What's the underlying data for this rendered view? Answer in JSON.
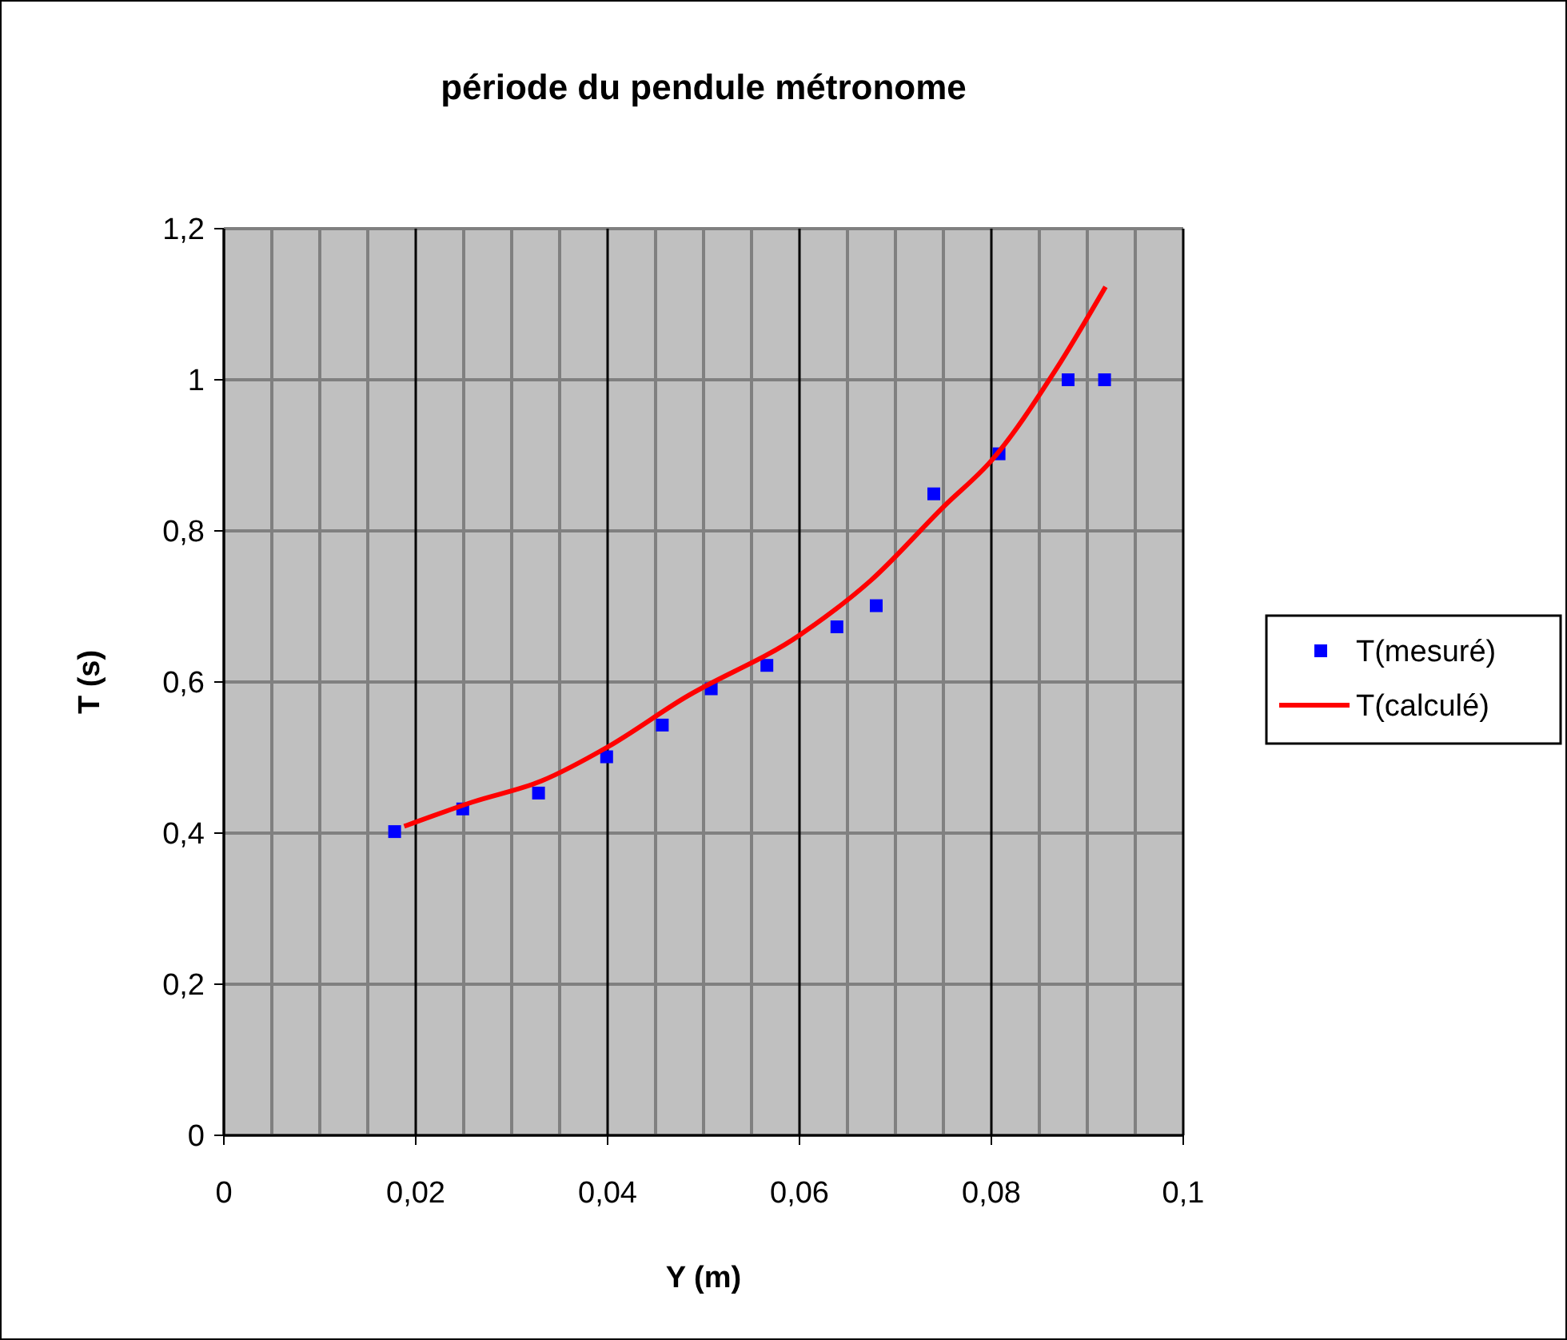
{
  "chart_data": {
    "type": "scatter",
    "title": "période du pendule métronome",
    "xlabel": "Y (m)",
    "ylabel": "T (s)",
    "xlim": [
      0,
      0.1
    ],
    "ylim": [
      0,
      1.2
    ],
    "xticks": [
      0,
      {
        "value": 0.02,
        "label": "0,02"
      },
      {
        "value": 0.04,
        "label": "0,04"
      },
      {
        "value": 0.06,
        "label": "0,06"
      },
      {
        "value": 0.08,
        "label": "0,08"
      },
      {
        "value": 0.1,
        "label": "0,1"
      }
    ],
    "yticks": [
      0,
      {
        "value": 0.2,
        "label": "0,2"
      },
      {
        "value": 0.4,
        "label": "0,4"
      },
      {
        "value": 0.6,
        "label": "0,6"
      },
      {
        "value": 0.8,
        "label": "0,8"
      },
      1,
      {
        "value": 1.2,
        "label": "1,2"
      }
    ],
    "grid": true,
    "legend": "right",
    "series": [
      {
        "name": "T(mesuré)",
        "marker": "square",
        "color": "#0000ff",
        "x": [
          0.0178,
          0.0249,
          0.0328,
          0.0399,
          0.0457,
          0.0508,
          0.0566,
          0.0639,
          0.068,
          0.074,
          0.0808,
          0.088,
          0.0918
        ],
        "values": [
          0.402,
          0.432,
          0.453,
          0.501,
          0.543,
          0.591,
          0.622,
          0.673,
          0.701,
          0.849,
          0.902,
          1.0,
          1.0
        ]
      },
      {
        "name": "T(calculé)",
        "type": "line",
        "marker": "none",
        "line_style": "solid",
        "color": "#ff0000",
        "x": [
          0.0188,
          0.0259,
          0.0331,
          0.04,
          0.048,
          0.06,
          0.0674,
          0.0751,
          0.08,
          0.0867,
          0.0919
        ],
        "values": [
          0.409,
          0.441,
          0.469,
          0.514,
          0.579,
          0.662,
          0.734,
          0.833,
          0.893,
          1.013,
          1.123
        ]
      }
    ]
  }
}
